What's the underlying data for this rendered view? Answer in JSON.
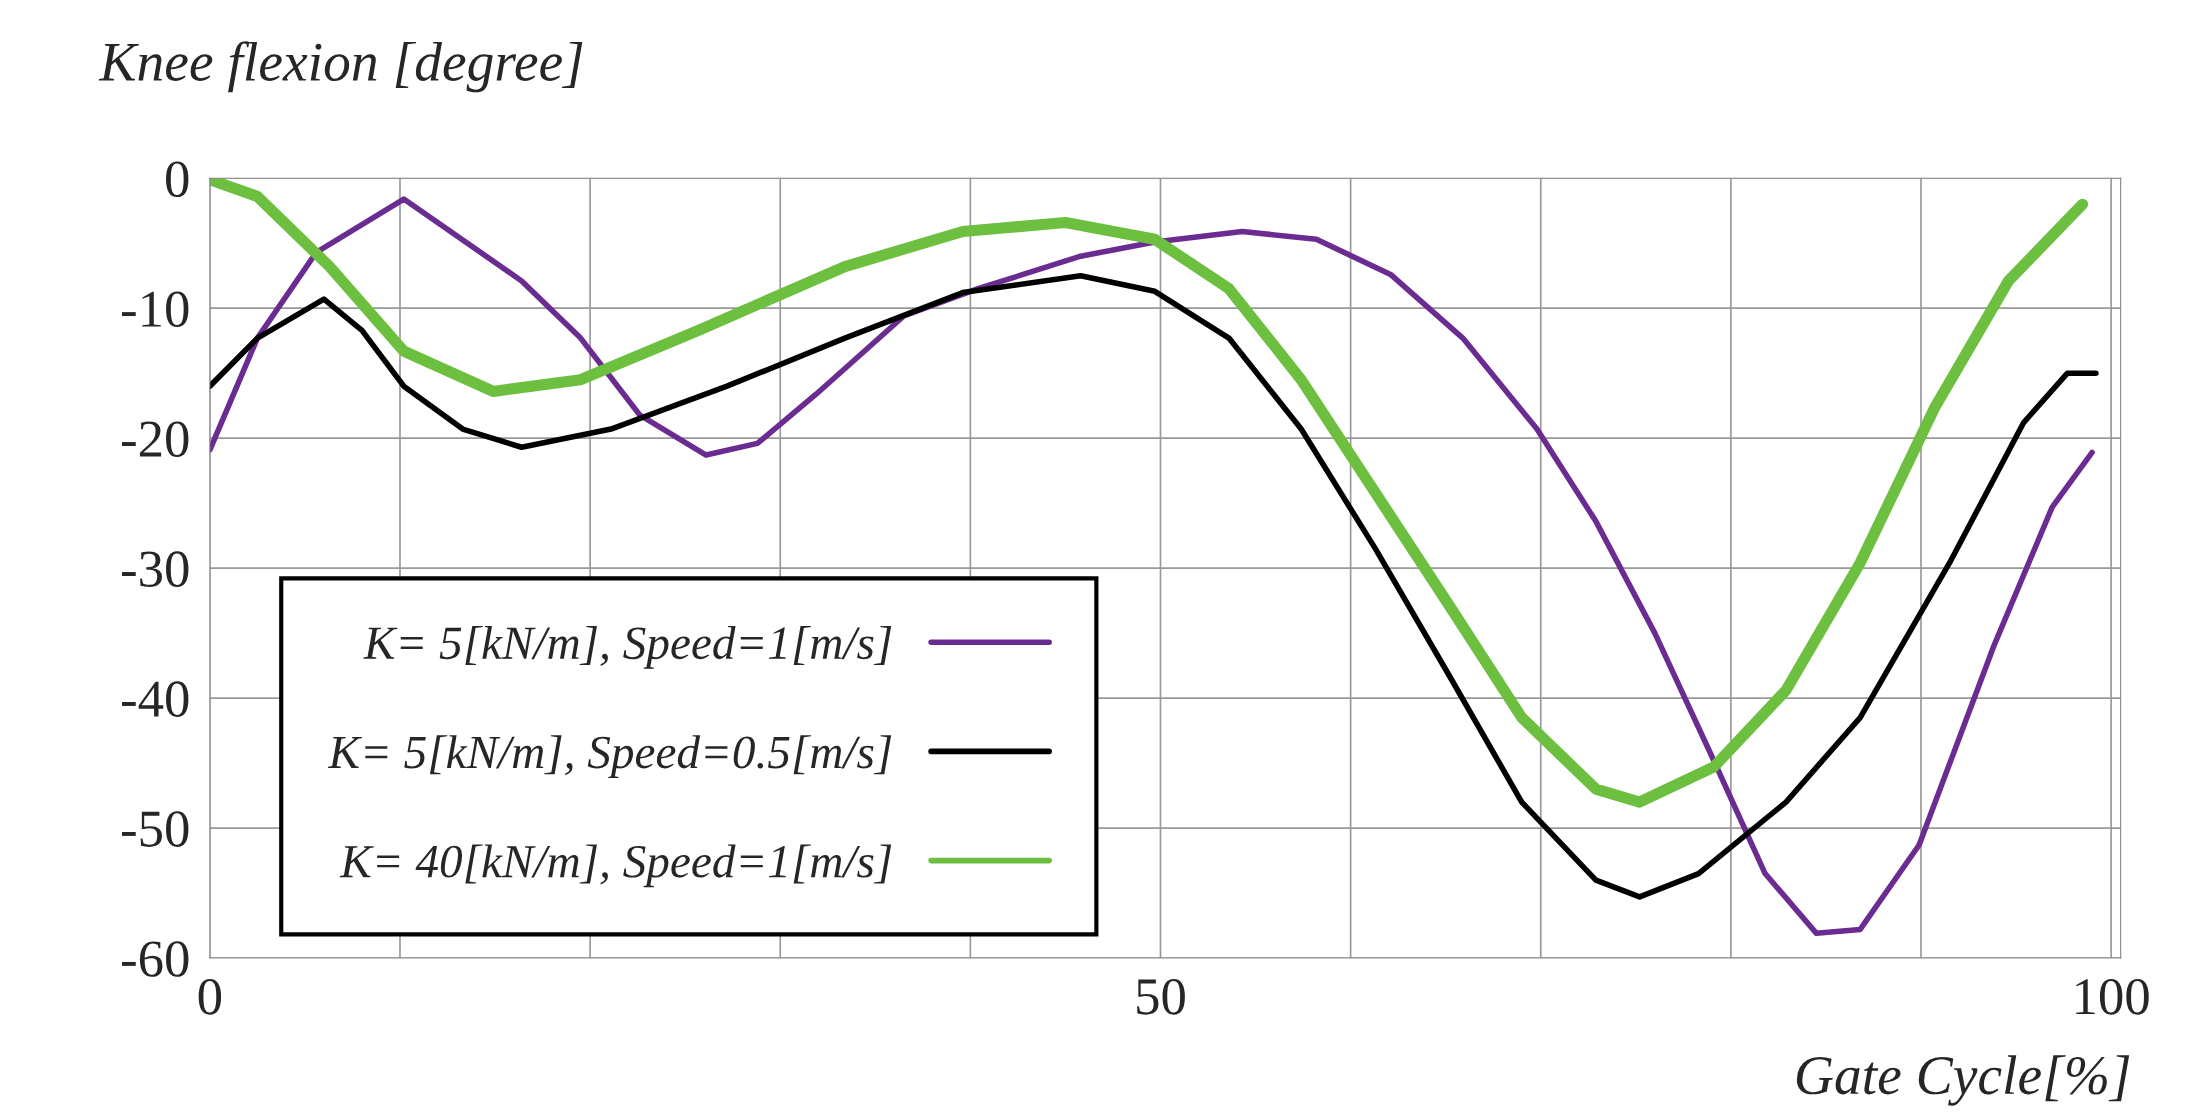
{
  "chart_data": {
    "type": "line",
    "ylabel": "Knee flexion [degree]",
    "xlabel": "Gate Cycle[%]",
    "xlim": [
      0,
      100.5
    ],
    "ylim": [
      -60,
      0
    ],
    "xticks": [
      0,
      {
        "value": 10,
        "label": null
      },
      {
        "value": 20,
        "label": null
      },
      {
        "value": 30,
        "label": null
      },
      {
        "value": 40,
        "label": null
      },
      50,
      {
        "value": 60,
        "label": null
      },
      {
        "value": 70,
        "label": null
      },
      {
        "value": 80,
        "label": null
      },
      {
        "value": 90,
        "label": null
      },
      100
    ],
    "yticks": [
      0,
      -10,
      -20,
      -30,
      -40,
      -50,
      -60
    ],
    "grid": true,
    "legend": "bottom left",
    "marker": "none",
    "line_style": "solid",
    "series": [
      {
        "name": "K= 5[kN/m], Speed=1[m/s]",
        "color": "#6a2c91",
        "x": [
          0,
          2.5,
          5.6,
          10.2,
          16.4,
          19.5,
          22.6,
          26.1,
          28.8,
          31.9,
          36.5,
          40.4,
          45.8,
          49.7,
          54.3,
          58.2,
          62.1,
          65.9,
          69.8,
          72.9,
          76,
          79.1,
          81.8,
          84.5,
          86.8,
          89.9,
          93.8,
          96.9,
          99
        ],
        "values": [
          -20.9,
          -12.3,
          -5.7,
          -1.6,
          -7.9,
          -12.3,
          -18.2,
          -21.3,
          -20.4,
          -16.6,
          -10.6,
          -8.5,
          -6.0,
          -4.9,
          -4.1,
          -4.7,
          -7.4,
          -12.3,
          -19.3,
          -26.4,
          -35,
          -44.8,
          -53.5,
          -58.1,
          -57.8,
          -51.3,
          -36.1,
          -25.3,
          -21.1
        ]
      },
      {
        "name": "K= 5[kN/m], Speed=0.5[m/s]",
        "color": "#000000",
        "x": [
          0,
          2.5,
          6,
          8,
          10.2,
          13.3,
          16.4,
          21.1,
          27.2,
          33.4,
          39.6,
          45.8,
          49.7,
          53.6,
          57.4,
          61.3,
          65.2,
          69,
          72.9,
          75.2,
          78.3,
          82.9,
          86.8,
          91.5,
          95.4,
          97.7,
          99.2
        ],
        "values": [
          -16,
          -12.3,
          -9.3,
          -11.7,
          -16,
          -19.3,
          -20.7,
          -19.3,
          -16,
          -12.3,
          -8.8,
          -7.5,
          -8.7,
          -12.3,
          -19.3,
          -28.5,
          -38.3,
          -48,
          -54,
          -55.3,
          -53.5,
          -48,
          -41.5,
          -29.6,
          -18.8,
          -15,
          -15
        ]
      },
      {
        "name": "K= 40[kN/m], Speed=1[m/s]",
        "color": "#6cbf3f",
        "x": [
          0,
          2.5,
          6.3,
          10.2,
          14.9,
          19.5,
          25.7,
          33.4,
          39.6,
          45,
          49.7,
          53.6,
          57.4,
          61.3,
          65.2,
          69,
          72.9,
          75.2,
          79.1,
          82.9,
          86.8,
          90.7,
          94.6,
          98.5
        ],
        "values": [
          -0.1,
          -1.4,
          -6.8,
          -13.3,
          -16.4,
          -15.5,
          -11.7,
          -6.8,
          -4.1,
          -3.4,
          -4.7,
          -8.5,
          -15.5,
          -24.2,
          -32.9,
          -41.5,
          -47,
          -48,
          -45.3,
          -39.4,
          -29.6,
          -17.7,
          -7.9,
          -2
        ]
      }
    ]
  }
}
